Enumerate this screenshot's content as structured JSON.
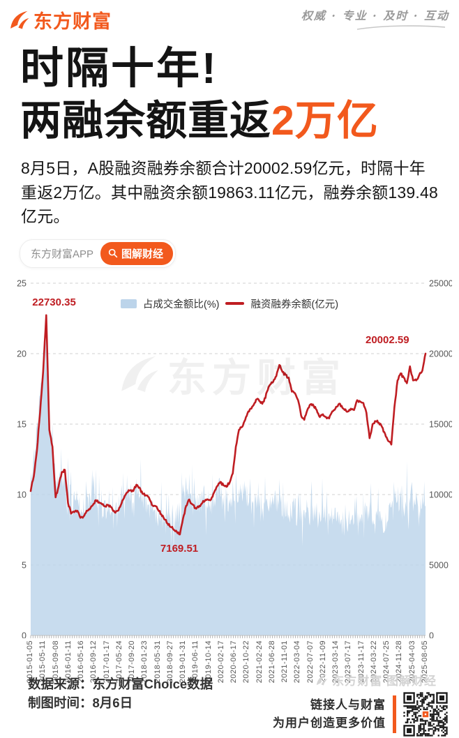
{
  "header": {
    "logo_text": "东方财富",
    "tagline": "权威 · 专业 · 及时 · 互动"
  },
  "title": {
    "line1": "时隔十年!",
    "line2_black": "两融余额重返",
    "line2_highlight": "2万亿"
  },
  "intro": {
    "text": "8月5日，A股融资融券余额合计20002.59亿元，时隔十年重返2万亿。其中融资余额19863.11亿元，融券余额139.48亿元。"
  },
  "badges": {
    "app_label": "东方财富APP",
    "search_label": "图解财经"
  },
  "watermark": {
    "text": "东方财富"
  },
  "chart_data": {
    "type": "combo-area-line",
    "legend": [
      {
        "label": "占成交金额比(%)",
        "type": "area",
        "color": "#bcd4ea"
      },
      {
        "label": "融资融券余额(亿元)",
        "type": "line",
        "color": "#bf1d22"
      }
    ],
    "left_axis": {
      "title": "占成交金额比(%)",
      "ticks": [
        25,
        20,
        15,
        10,
        5,
        0
      ],
      "max": 25
    },
    "right_axis": {
      "title": "融资融券余额(亿元)",
      "ticks": [
        25000,
        20000,
        15000,
        10000,
        5000,
        0
      ],
      "max": 25000
    },
    "grid": "dashed-horizontal",
    "x_range": [
      "2015-01-05",
      "2025-08-05"
    ],
    "x_labels": [
      "2015-01-05",
      "2015-05-11",
      "2015-09-08",
      "2016-01-11",
      "2016-05-16",
      "2016-09-12",
      "2017-01-17",
      "2017-05-24",
      "2017-09-20",
      "2018-01-23",
      "2018-05-31",
      "2018-09-27",
      "2019-01-31",
      "2019-06-11",
      "2019-10-14",
      "2020-02-17",
      "2020-06-17",
      "2020-10-22",
      "2021-02-24",
      "2021-06-28",
      "2021-11-01",
      "2022-03-04",
      "2022-07-07",
      "2022-11-09",
      "2023-03-14",
      "2023-07-17",
      "2023-11-17",
      "2024-03-22",
      "2024-07-25",
      "2024-11-28",
      "2025-04-03",
      "2025-08-05"
    ],
    "annotations": [
      {
        "label": "22730.35",
        "index": 5,
        "value": 22730.35,
        "placement": "above"
      },
      {
        "label": "7169.51",
        "index": 48,
        "value": 7169.51,
        "placement": "below"
      },
      {
        "label": "20002.59",
        "index": 127,
        "value": 20002.59,
        "placement": "above-end"
      }
    ],
    "series": {
      "months_start": "2015-01",
      "balance_monthly": [
        10250,
        11300,
        13100,
        15800,
        18700,
        22730.35,
        14600,
        13400,
        9800,
        10600,
        11600,
        11750,
        9400,
        8650,
        8750,
        8850,
        8350,
        8450,
        8850,
        8950,
        9250,
        9600,
        9450,
        9300,
        9150,
        9250,
        9100,
        8750,
        8850,
        9250,
        9750,
        10150,
        10300,
        10250,
        10700,
        10500,
        10050,
        9950,
        9800,
        9250,
        9200,
        8900,
        8600,
        8250,
        7950,
        7700,
        7500,
        7350,
        7169.51,
        8300,
        9200,
        9650,
        9300,
        9050,
        9100,
        9350,
        9550,
        9650,
        9650,
        10150,
        10600,
        10900,
        10650,
        10550,
        10850,
        11500,
        13400,
        14600,
        14800,
        15300,
        15900,
        16100,
        16500,
        16800,
        16500,
        16600,
        17300,
        17800,
        18000,
        18400,
        19200,
        18700,
        18500,
        18300,
        17300,
        17200,
        16700,
        15600,
        15300,
        16000,
        16400,
        16300,
        16000,
        15500,
        15700,
        15500,
        15400,
        15900,
        16100,
        16400,
        16300,
        16000,
        15900,
        16100,
        16000,
        16700,
        16600,
        16500,
        15800,
        14000,
        15000,
        15200,
        15100,
        14800,
        14300,
        13800,
        13550,
        16200,
        18100,
        18600,
        18300,
        17900,
        19100,
        18100,
        18100,
        18500,
        18800,
        20002.59
      ],
      "percent_monthly": [
        11,
        12.5,
        14.5,
        17,
        19.5,
        20.8,
        16,
        13,
        11,
        10.5,
        11.5,
        11,
        10,
        9,
        9.5,
        9.5,
        9,
        9,
        9.5,
        9.5,
        10,
        10,
        9.5,
        9,
        9,
        9,
        8.8,
        8.5,
        9,
        9.5,
        10,
        10,
        9.5,
        10,
        10.5,
        10,
        9.5,
        9.5,
        9,
        9,
        8.5,
        8.5,
        9,
        8.5,
        8.5,
        8.5,
        8,
        8.5,
        9,
        10,
        10.5,
        10,
        9.5,
        9.5,
        9.5,
        9.5,
        9.5,
        9,
        9,
        9.5,
        10,
        10.5,
        10,
        9.5,
        9.5,
        9.5,
        10.5,
        10,
        10,
        10,
        9.5,
        9.5,
        9.5,
        9.5,
        9,
        9,
        9.5,
        9.5,
        9.5,
        9.5,
        9.5,
        9,
        9,
        9,
        9,
        9,
        9,
        8.5,
        8.5,
        8.5,
        8.5,
        8.5,
        8.5,
        8,
        8.5,
        8.5,
        8.5,
        8.5,
        8.5,
        8.5,
        8,
        8,
        8,
        8.5,
        8.5,
        8.5,
        8.5,
        8.5,
        8.5,
        9,
        8.5,
        8.5,
        8.5,
        8,
        8,
        8.5,
        9,
        10.5,
        10,
        9.5,
        9.5,
        9.5,
        9.5,
        10,
        9.5,
        9.5,
        9.5,
        10
      ]
    },
    "texture": {
      "percent_jitter": 0.8,
      "percent_spike": 2.1,
      "balance_jitter": 110
    },
    "colors": {
      "area": "#bcd4ea",
      "line": "#bf1d22",
      "grid": "#d2d2d2",
      "axis_text": "#555555",
      "annotation": "#bf1d22"
    }
  },
  "footer": {
    "source": "数据来源：东方财富Choice数据",
    "date": "制图时间：8月6日",
    "brand": "东方财富 图解财经",
    "slogan_line1": "链接人与财富",
    "slogan_line2": "为用户创造更多价值"
  },
  "brand_colors": {
    "orange": "#f2591d",
    "red": "#bf1d22"
  }
}
